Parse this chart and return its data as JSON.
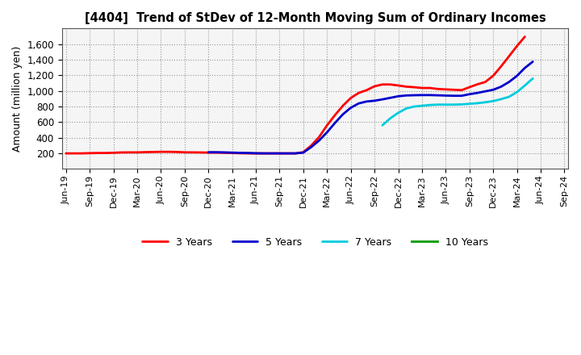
{
  "title": "[4404]  Trend of StDev of 12-Month Moving Sum of Ordinary Incomes",
  "ylabel": "Amount (million yen)",
  "background_color": "#ffffff",
  "plot_bg_color": "#f5f5f5",
  "grid_color": "#999999",
  "line_colors": {
    "3 Years": "#ff0000",
    "5 Years": "#0000cc",
    "7 Years": "#00ccdd",
    "10 Years": "#009900"
  },
  "line_widths": {
    "3 Years": 2.0,
    "5 Years": 2.0,
    "7 Years": 2.0,
    "10 Years": 2.0
  },
  "ylim": [
    0,
    1800
  ],
  "yticks": [
    200,
    400,
    600,
    800,
    1000,
    1200,
    1400,
    1600
  ],
  "series": {
    "3 Years": {
      "y": [
        200,
        200,
        200,
        203,
        205,
        205,
        208,
        212,
        213,
        213,
        216,
        218,
        220,
        220,
        218,
        214,
        213,
        212,
        210,
        210,
        207,
        205,
        202,
        200,
        199,
        200,
        200,
        200,
        200,
        200,
        215,
        300,
        410,
        560,
        690,
        810,
        910,
        975,
        1010,
        1060,
        1083,
        1083,
        1070,
        1055,
        1048,
        1038,
        1038,
        1025,
        1020,
        1015,
        1010,
        1048,
        1085,
        1115,
        1195,
        1315,
        1445,
        1575,
        1695,
        null,
        null,
        null,
        null,
        null
      ]
    },
    "5 Years": {
      "y": [
        null,
        null,
        null,
        null,
        null,
        null,
        null,
        null,
        null,
        null,
        null,
        null,
        null,
        null,
        null,
        null,
        null,
        null,
        215,
        215,
        213,
        210,
        207,
        205,
        202,
        200,
        200,
        200,
        200,
        200,
        210,
        280,
        365,
        470,
        590,
        700,
        785,
        840,
        865,
        875,
        892,
        912,
        932,
        942,
        945,
        947,
        947,
        944,
        941,
        938,
        938,
        958,
        975,
        995,
        1015,
        1055,
        1115,
        1193,
        1295,
        1375,
        null,
        null,
        null,
        null
      ]
    },
    "7 Years": {
      "y": [
        null,
        null,
        null,
        null,
        null,
        null,
        null,
        null,
        null,
        null,
        null,
        null,
        null,
        null,
        null,
        null,
        null,
        null,
        null,
        null,
        null,
        null,
        null,
        null,
        null,
        null,
        null,
        null,
        null,
        null,
        null,
        null,
        null,
        null,
        null,
        null,
        null,
        null,
        null,
        null,
        560,
        650,
        720,
        775,
        800,
        810,
        820,
        825,
        825,
        825,
        828,
        835,
        843,
        855,
        870,
        895,
        925,
        985,
        1070,
        1160,
        null,
        null,
        null,
        null
      ]
    },
    "10 Years": {
      "y": []
    }
  },
  "x_labels": [
    "Jun-19",
    "Sep-19",
    "Dec-19",
    "Mar-20",
    "Jun-20",
    "Sep-20",
    "Dec-20",
    "Mar-21",
    "Jun-21",
    "Sep-21",
    "Dec-21",
    "Mar-22",
    "Jun-22",
    "Sep-22",
    "Dec-22",
    "Mar-23",
    "Jun-23",
    "Sep-23",
    "Dec-23",
    "Mar-24",
    "Jun-24",
    "Sep-24"
  ],
  "n_points": 64
}
